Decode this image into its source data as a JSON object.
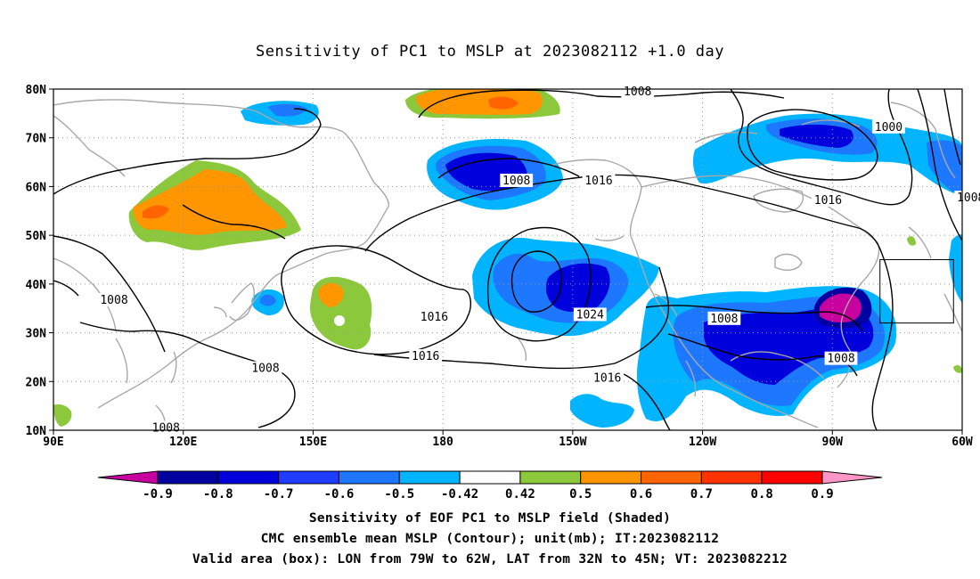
{
  "title": "Sensitivity of PC1 to MSLP at 2023082112 +1.0 day",
  "captions": {
    "line1": "Sensitivity of EOF PC1 to MSLP field (Shaded)",
    "line2": "CMC ensemble mean MSLP (Contour); unit(mb); IT:2023082112",
    "line3": "Valid area (box): LON from 79W to 62W, LAT from 32N to 45N; VT: 2023082212"
  },
  "map": {
    "lon_range": [
      90,
      300
    ],
    "lat_range": [
      10,
      80
    ],
    "lat_ticks": [
      {
        "lat": 80,
        "label": "80N"
      },
      {
        "lat": 70,
        "label": "70N"
      },
      {
        "lat": 60,
        "label": "60N"
      },
      {
        "lat": 50,
        "label": "50N"
      },
      {
        "lat": 40,
        "label": "40N"
      },
      {
        "lat": 30,
        "label": "30N"
      },
      {
        "lat": 20,
        "label": "20N"
      },
      {
        "lat": 10,
        "label": "10N"
      }
    ],
    "lon_ticks": [
      {
        "lon": 90,
        "label": "90E"
      },
      {
        "lon": 120,
        "label": "120E"
      },
      {
        "lon": 150,
        "label": "150E"
      },
      {
        "lon": 180,
        "label": "180"
      },
      {
        "lon": 210,
        "label": "150W"
      },
      {
        "lon": 240,
        "label": "120W"
      },
      {
        "lon": 270,
        "label": "90W"
      },
      {
        "lon": 300,
        "label": "60W"
      }
    ],
    "valid_box": {
      "lon_min": 281,
      "lon_max": 298,
      "lat_min": 32,
      "lat_max": 45
    },
    "contour_labels": [
      {
        "text": "1008",
        "lon": 225,
        "lat": 79.3
      },
      {
        "text": "1000",
        "lon": 283,
        "lat": 72
      },
      {
        "text": "1008",
        "lon": 302,
        "lat": 57.5
      },
      {
        "text": "1016",
        "lon": 269,
        "lat": 57
      },
      {
        "text": "1008",
        "lon": 197,
        "lat": 61
      },
      {
        "text": "1016",
        "lon": 216,
        "lat": 61
      },
      {
        "text": "1024",
        "lon": 214,
        "lat": 33.5
      },
      {
        "text": "1016",
        "lon": 178,
        "lat": 33
      },
      {
        "text": "1016",
        "lon": 176,
        "lat": 25
      },
      {
        "text": "1016",
        "lon": 218,
        "lat": 20.5
      },
      {
        "text": "1008",
        "lon": 245,
        "lat": 32.7
      },
      {
        "text": "1008",
        "lon": 272,
        "lat": 24.5
      },
      {
        "text": "1008",
        "lon": 104,
        "lat": 36.5
      },
      {
        "text": "1008",
        "lon": 139,
        "lat": 22.5
      },
      {
        "text": "1008",
        "lon": 116,
        "lat": 10.3
      }
    ]
  },
  "colorbar": {
    "labels": [
      "-0.9",
      "-0.8",
      "-0.7",
      "-0.6",
      "-0.5",
      "-0.42",
      "0.42",
      "0.5",
      "0.6",
      "0.7",
      "0.8",
      "0.9"
    ],
    "colors": [
      "#c800a0",
      "#0000a0",
      "#0000dc",
      "#1e3cff",
      "#1e78ff",
      "#00b4ff",
      "#ffffff",
      "#8cc83c",
      "#ff9600",
      "#ff6400",
      "#ff3200",
      "#ff0000",
      "#ff96c8"
    ]
  }
}
